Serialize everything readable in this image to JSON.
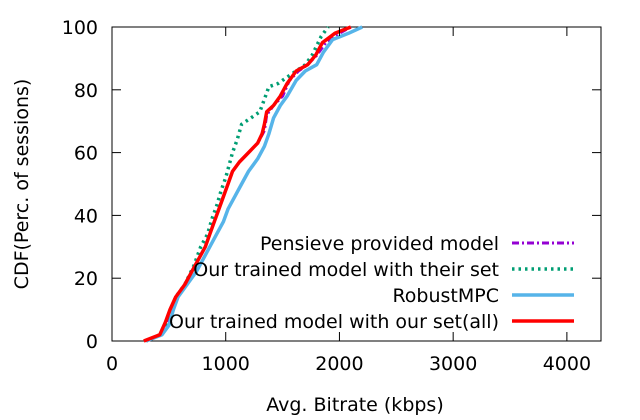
{
  "chart_data": {
    "type": "line",
    "title": "",
    "xlabel": "Avg. Bitrate (kbps)",
    "ylabel": "CDF(Perc. of sessions)",
    "xlim": [
      0,
      4300
    ],
    "ylim": [
      0,
      100
    ],
    "xticks": [
      0,
      1000,
      2000,
      3000,
      4000
    ],
    "yticks": [
      0,
      20,
      40,
      60,
      80,
      100
    ],
    "grid": false,
    "legend_position": "bottom-right",
    "series": [
      {
        "name": "Pensieve provided model",
        "color": "#9400d3",
        "dash": "dash-dot",
        "points": [
          [
            300,
            0
          ],
          [
            420,
            2
          ],
          [
            480,
            5
          ],
          [
            520,
            10
          ],
          [
            560,
            14
          ],
          [
            640,
            18
          ],
          [
            700,
            22
          ],
          [
            760,
            26
          ],
          [
            820,
            30
          ],
          [
            860,
            34
          ],
          [
            900,
            38
          ],
          [
            940,
            42
          ],
          [
            980,
            46
          ],
          [
            1020,
            50
          ],
          [
            1060,
            54
          ],
          [
            1120,
            57
          ],
          [
            1200,
            60
          ],
          [
            1280,
            63
          ],
          [
            1340,
            67
          ],
          [
            1360,
            72
          ],
          [
            1420,
            75
          ],
          [
            1500,
            78
          ],
          [
            1560,
            83
          ],
          [
            1640,
            86
          ],
          [
            1720,
            88
          ],
          [
            1800,
            91
          ],
          [
            1880,
            95
          ],
          [
            2000,
            98
          ],
          [
            2100,
            100
          ]
        ]
      },
      {
        "name": "Our trained model with their set",
        "color": "#009e73",
        "dash": "dotted",
        "points": [
          [
            300,
            0
          ],
          [
            420,
            2
          ],
          [
            480,
            6
          ],
          [
            520,
            10
          ],
          [
            560,
            14
          ],
          [
            640,
            18
          ],
          [
            720,
            24
          ],
          [
            780,
            30
          ],
          [
            840,
            34
          ],
          [
            880,
            39
          ],
          [
            920,
            43
          ],
          [
            960,
            48
          ],
          [
            1000,
            52
          ],
          [
            1060,
            60
          ],
          [
            1100,
            64
          ],
          [
            1140,
            69
          ],
          [
            1220,
            71
          ],
          [
            1300,
            73
          ],
          [
            1340,
            77
          ],
          [
            1380,
            81
          ],
          [
            1460,
            82
          ],
          [
            1540,
            84
          ],
          [
            1620,
            86
          ],
          [
            1700,
            88
          ],
          [
            1760,
            91
          ],
          [
            1800,
            94
          ],
          [
            1840,
            97
          ],
          [
            1900,
            100
          ]
        ]
      },
      {
        "name": "RobustMPC",
        "color": "#56b4e9",
        "dash": "solid",
        "points": [
          [
            300,
            0
          ],
          [
            440,
            2
          ],
          [
            500,
            5
          ],
          [
            540,
            10
          ],
          [
            580,
            14
          ],
          [
            660,
            18
          ],
          [
            740,
            22
          ],
          [
            800,
            26
          ],
          [
            860,
            30
          ],
          [
            920,
            34
          ],
          [
            980,
            38
          ],
          [
            1020,
            42
          ],
          [
            1080,
            46
          ],
          [
            1140,
            50
          ],
          [
            1200,
            54
          ],
          [
            1280,
            58
          ],
          [
            1340,
            62
          ],
          [
            1380,
            66
          ],
          [
            1420,
            71
          ],
          [
            1480,
            75
          ],
          [
            1540,
            78
          ],
          [
            1620,
            83
          ],
          [
            1700,
            86
          ],
          [
            1800,
            88
          ],
          [
            1860,
            92
          ],
          [
            1940,
            96
          ],
          [
            2080,
            98
          ],
          [
            2200,
            100
          ]
        ]
      },
      {
        "name": "Our trained model with our set(all)",
        "color": "#ff0000",
        "dash": "solid",
        "points": [
          [
            280,
            0
          ],
          [
            420,
            2
          ],
          [
            470,
            6
          ],
          [
            510,
            10
          ],
          [
            560,
            14
          ],
          [
            640,
            18
          ],
          [
            700,
            22
          ],
          [
            760,
            26
          ],
          [
            820,
            30
          ],
          [
            860,
            34
          ],
          [
            900,
            38
          ],
          [
            940,
            42
          ],
          [
            980,
            46
          ],
          [
            1020,
            50
          ],
          [
            1060,
            54
          ],
          [
            1120,
            57
          ],
          [
            1200,
            60
          ],
          [
            1280,
            63
          ],
          [
            1320,
            66
          ],
          [
            1340,
            69
          ],
          [
            1360,
            73
          ],
          [
            1420,
            75
          ],
          [
            1480,
            78
          ],
          [
            1540,
            82
          ],
          [
            1620,
            86
          ],
          [
            1720,
            88
          ],
          [
            1790,
            91
          ],
          [
            1850,
            95
          ],
          [
            1960,
            98
          ],
          [
            2100,
            100
          ]
        ]
      }
    ]
  }
}
